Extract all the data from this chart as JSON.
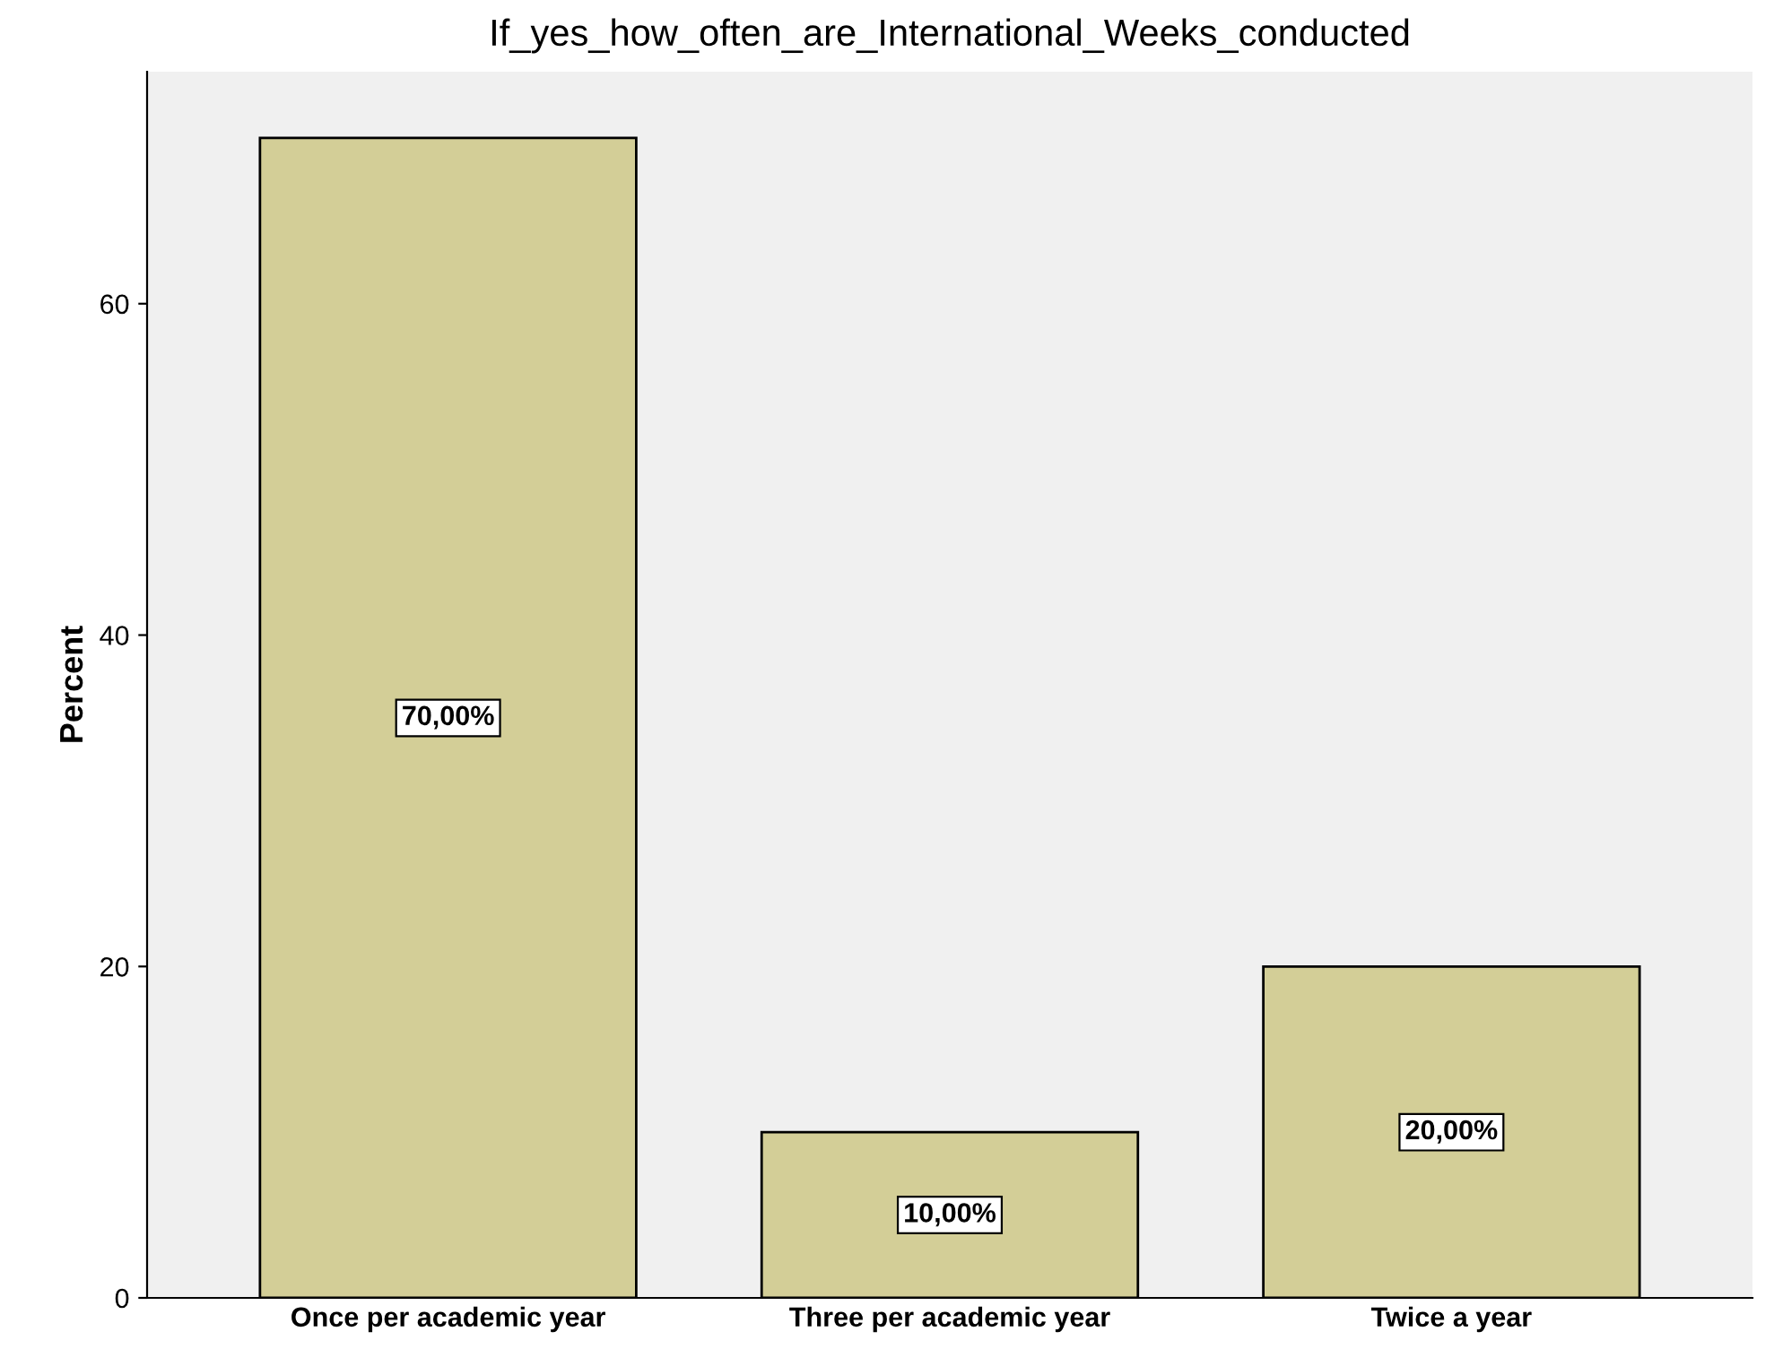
{
  "chart_data": {
    "type": "bar",
    "title": "If_yes_how_often_are_International_Weeks_conducted",
    "ylabel": "Percent",
    "categories": [
      "Once per academic year",
      "Three per academic year",
      "Twice a year"
    ],
    "values": [
      70,
      10,
      20
    ],
    "value_labels": [
      "70,00%",
      "10,00%",
      "20,00%"
    ],
    "color": "#d3ce97",
    "ylim": [
      0,
      74
    ],
    "yticks": [
      0,
      20,
      40,
      60
    ],
    "grid": false
  }
}
